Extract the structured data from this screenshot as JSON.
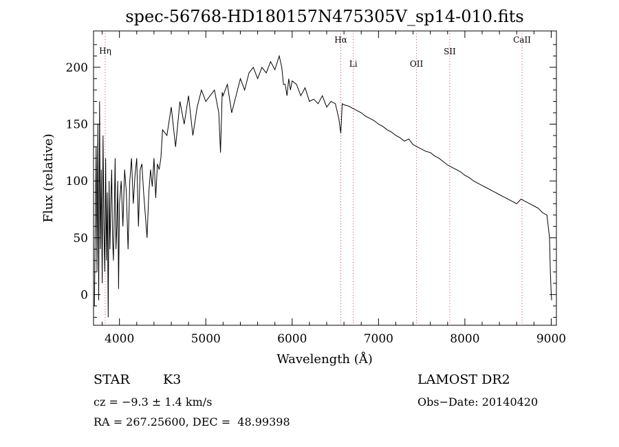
{
  "chart_data": {
    "type": "line",
    "title": "spec-56768-HD180157N475305V_sp14-010.fits",
    "xlabel": "Wavelength (Å)",
    "ylabel": "Flux (relative)",
    "xlim": [
      3700,
      9060
    ],
    "ylim": [
      -27,
      232
    ],
    "xticks": [
      4000,
      5000,
      6000,
      7000,
      8000,
      9000
    ],
    "yticks": [
      0,
      50,
      100,
      150,
      200
    ],
    "grid": false,
    "series": [
      {
        "color": "#000000",
        "x": [
          3710,
          3720,
          3730,
          3740,
          3750,
          3760,
          3770,
          3780,
          3790,
          3800,
          3810,
          3820,
          3830,
          3840,
          3850,
          3860,
          3870,
          3880,
          3890,
          3900,
          3910,
          3920,
          3930,
          3940,
          3950,
          3960,
          3970,
          3980,
          3990,
          4000,
          4020,
          4040,
          4060,
          4080,
          4100,
          4120,
          4140,
          4160,
          4180,
          4200,
          4220,
          4240,
          4260,
          4280,
          4300,
          4320,
          4340,
          4360,
          4380,
          4400,
          4420,
          4440,
          4460,
          4480,
          4500,
          4550,
          4600,
          4650,
          4700,
          4750,
          4800,
          4850,
          4900,
          4950,
          5000,
          5050,
          5100,
          5150,
          5170,
          5190,
          5200,
          5250,
          5300,
          5350,
          5400,
          5450,
          5500,
          5550,
          5600,
          5650,
          5700,
          5750,
          5800,
          5850,
          5880,
          5900,
          5920,
          5940,
          5960,
          5980,
          6000,
          6050,
          6100,
          6150,
          6200,
          6250,
          6300,
          6350,
          6400,
          6450,
          6500,
          6540,
          6563,
          6580,
          6600,
          6650,
          6700,
          6750,
          6800,
          6850,
          6900,
          6950,
          7000,
          7050,
          7100,
          7150,
          7200,
          7250,
          7300,
          7350,
          7400,
          7450,
          7500,
          7550,
          7600,
          7650,
          7700,
          7750,
          7800,
          7850,
          7900,
          7950,
          8000,
          8050,
          8100,
          8150,
          8200,
          8250,
          8300,
          8350,
          8400,
          8450,
          8500,
          8550,
          8600,
          8650,
          8700,
          8750,
          8800,
          8850,
          8900,
          8950,
          8980,
          8990,
          9000,
          9005
        ],
        "y": [
          -10,
          60,
          130,
          20,
          150,
          -5,
          170,
          40,
          110,
          10,
          140,
          60,
          20,
          120,
          30,
          90,
          -20,
          100,
          40,
          80,
          110,
          50,
          30,
          70,
          120,
          40,
          60,
          100,
          5,
          80,
          100,
          60,
          110,
          90,
          40,
          100,
          120,
          80,
          105,
          120,
          60,
          110,
          115,
          90,
          70,
          50,
          90,
          110,
          95,
          120,
          85,
          115,
          110,
          120,
          145,
          140,
          165,
          130,
          170,
          150,
          175,
          140,
          165,
          180,
          170,
          175,
          180,
          160,
          125,
          178,
          175,
          185,
          160,
          175,
          190,
          180,
          195,
          200,
          190,
          200,
          195,
          205,
          198,
          210,
          200,
          185,
          185,
          175,
          190,
          180,
          188,
          185,
          175,
          182,
          170,
          172,
          168,
          175,
          165,
          170,
          168,
          155,
          142,
          168,
          167,
          166,
          164,
          162,
          160,
          157,
          155,
          153,
          150,
          148,
          145,
          143,
          140,
          138,
          135,
          137,
          132,
          130,
          128,
          126,
          125,
          122,
          120,
          117,
          114,
          112,
          110,
          108,
          105,
          103,
          100,
          98,
          96,
          94,
          92,
          90,
          88,
          86,
          84,
          82,
          80,
          84,
          82,
          80,
          78,
          76,
          72,
          70,
          50,
          20,
          0,
          -5
        ]
      }
    ],
    "reference_lines": [
      {
        "label": "Hη",
        "wavelength": 3835
      },
      {
        "label": "Hα",
        "wavelength": 6563
      },
      {
        "label": "Li",
        "wavelength": 6708
      },
      {
        "label": "OII",
        "wavelength": 7440
      },
      {
        "label": "SII",
        "wavelength": 7825
      },
      {
        "label": "CaII",
        "wavelength": 8662
      }
    ]
  },
  "info": {
    "object_class": "STAR",
    "subclass": "K3",
    "survey": "LAMOST DR2",
    "cz": "cz = −9.3 ± 1.4 km/s",
    "obs_date": "Obs−Date: 20140420",
    "coords": "RA = 267.25600, DEC =  48.99398"
  }
}
